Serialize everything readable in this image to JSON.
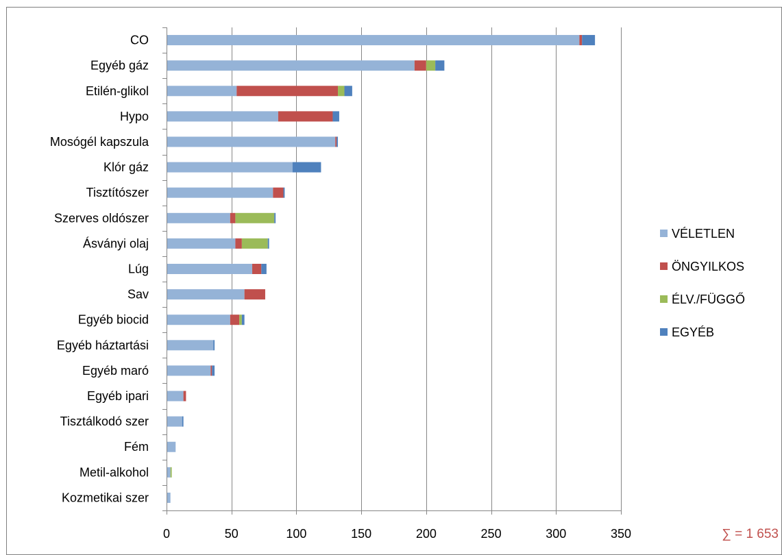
{
  "chart_data": {
    "type": "bar",
    "orientation": "horizontal",
    "stacked": true,
    "categories": [
      "CO",
      "Egyéb gáz",
      "Etilén-glikol",
      "Hypo",
      "Mosógél kapszula",
      "Klór gáz",
      "Tisztítószer",
      "Szerves oldószer",
      "Ásványi olaj",
      "Lúg",
      "Sav",
      "Egyéb biocid",
      "Egyéb háztartási",
      "Egyéb maró",
      "Egyéb ipari",
      "Tisztálkodó szer",
      "Fém",
      "Metil-alkohol",
      "Kozmetikai szer"
    ],
    "series": [
      {
        "name": "VÉLETLEN",
        "color": "#95b3d7",
        "values": [
          318,
          191,
          54,
          86,
          130,
          97,
          82,
          49,
          53,
          66,
          60,
          49,
          36,
          34,
          13,
          12,
          7,
          3,
          3
        ]
      },
      {
        "name": "ÖNGYILKOS",
        "color": "#c0504d",
        "values": [
          2,
          9,
          78,
          42,
          1,
          0,
          8,
          4,
          5,
          7,
          16,
          7,
          0,
          1,
          2,
          0,
          0,
          0,
          0
        ]
      },
      {
        "name": "ÉLV./FÜGGŐ",
        "color": "#9bbb59",
        "values": [
          0,
          7,
          5,
          0,
          0,
          0,
          0,
          30,
          20,
          0,
          0,
          2,
          0,
          0,
          0,
          0,
          0,
          1,
          0
        ]
      },
      {
        "name": "EGYÉB",
        "color": "#4f81bd",
        "values": [
          10,
          7,
          6,
          5,
          1,
          22,
          1,
          1,
          1,
          4,
          0,
          2,
          1,
          2,
          0,
          1,
          0,
          0,
          0
        ]
      }
    ],
    "xlim": [
      0,
      350
    ],
    "xticks": [
      0,
      50,
      100,
      150,
      200,
      250,
      300,
      350
    ],
    "grid": true,
    "legend_position": "right",
    "title": "",
    "xlabel": "",
    "ylabel": "",
    "annotation": "∑ = 1 653",
    "annotation_color": "#c0504d",
    "gridline_color": "#868686",
    "axis_color": "#868686"
  }
}
